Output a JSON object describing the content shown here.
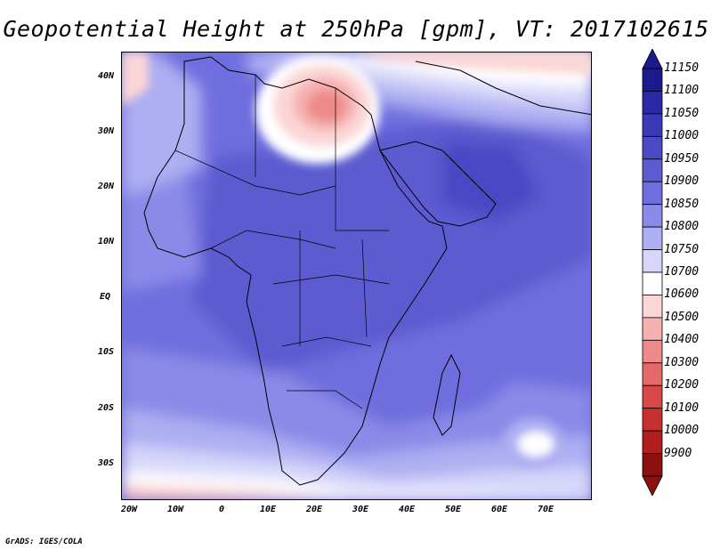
{
  "title": "Geopotential Height at 250hPa [gpm], VT: 2017102615",
  "credit": "GrADS: IGES/COLA",
  "map": {
    "lat_labels": [
      "40N",
      "30N",
      "20N",
      "10N",
      "EQ",
      "10S",
      "20S",
      "30S"
    ],
    "lon_labels": [
      "20W",
      "10W",
      "0",
      "10E",
      "20E",
      "30E",
      "40E",
      "50E",
      "60E",
      "70E"
    ],
    "lat_range": [
      -37,
      44
    ],
    "lon_range": [
      -21,
      80
    ]
  },
  "colorbar": {
    "levels": [
      "11150",
      "11100",
      "11050",
      "11000",
      "10950",
      "10900",
      "10850",
      "10800",
      "10750",
      "10700",
      "10600",
      "10500",
      "10400",
      "10300",
      "10200",
      "10100",
      "10000",
      "9900"
    ],
    "colors": [
      "#1c1a8c",
      "#2a2aa6",
      "#3a3ab8",
      "#4a4ac4",
      "#5c5cd0",
      "#6e6ede",
      "#8a8ae8",
      "#aeaef2",
      "#d6d6fa",
      "#ffffff",
      "#fbd6d6",
      "#f5b0b0",
      "#ee8a8a",
      "#e46a6a",
      "#d84848",
      "#c83030",
      "#b01e1e",
      "#8c1010"
    ]
  }
}
